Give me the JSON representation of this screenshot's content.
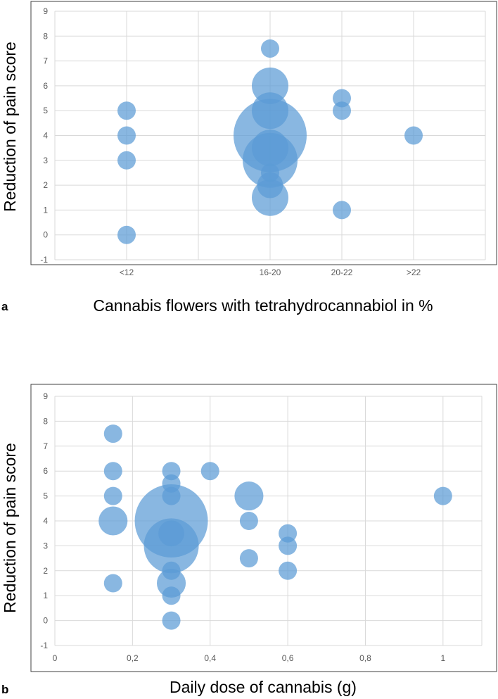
{
  "colors": {
    "bubble": "#5b9bd5",
    "grid": "#d9d9d9",
    "frame": "#404040"
  },
  "chart_data": [
    {
      "panel_label": "a",
      "type": "scatter",
      "subtype": "bubble",
      "xlabel": "Cannabis flowers with tetrahydrocannabiol in %",
      "ylabel": "Reduction of pain score",
      "x_categories": [
        "<12",
        "16-20",
        "20-22",
        ">22"
      ],
      "x_positions": [
        1,
        3,
        4,
        5
      ],
      "xlim": [
        0,
        6
      ],
      "ylim": [
        -1,
        9
      ],
      "y_ticks": [
        "-1",
        "0",
        "1",
        "2",
        "3",
        "4",
        "5",
        "6",
        "7",
        "8",
        "9"
      ],
      "grid": true,
      "points": [
        {
          "x": 1,
          "y": 5,
          "size": 1
        },
        {
          "x": 1,
          "y": 4,
          "size": 1
        },
        {
          "x": 1,
          "y": 3,
          "size": 1
        },
        {
          "x": 1,
          "y": 0,
          "size": 1
        },
        {
          "x": 3,
          "y": 7.5,
          "size": 1
        },
        {
          "x": 3,
          "y": 6,
          "size": 4
        },
        {
          "x": 3,
          "y": 5,
          "size": 4
        },
        {
          "x": 3,
          "y": 4,
          "size": 16
        },
        {
          "x": 3,
          "y": 3.5,
          "size": 4
        },
        {
          "x": 3,
          "y": 3,
          "size": 9
        },
        {
          "x": 3,
          "y": 2.5,
          "size": 1
        },
        {
          "x": 3,
          "y": 2,
          "size": 2
        },
        {
          "x": 3,
          "y": 1.5,
          "size": 4
        },
        {
          "x": 4,
          "y": 5.5,
          "size": 1
        },
        {
          "x": 4,
          "y": 5,
          "size": 1
        },
        {
          "x": 4,
          "y": 1,
          "size": 1
        },
        {
          "x": 5,
          "y": 4,
          "size": 1
        }
      ]
    },
    {
      "panel_label": "b",
      "type": "scatter",
      "subtype": "bubble",
      "xlabel": "Daily dose of cannabis (g)",
      "ylabel": "Reduction of pain score",
      "x_ticks": [
        "0",
        "0,2",
        "0,4",
        "0,6",
        "0,8",
        "1"
      ],
      "xlim": [
        0,
        1.1
      ],
      "ylim": [
        -1,
        9
      ],
      "y_ticks": [
        "-1",
        "0",
        "1",
        "2",
        "3",
        "4",
        "5",
        "6",
        "7",
        "8",
        "9"
      ],
      "grid": true,
      "points": [
        {
          "x": 0.15,
          "y": 7.5,
          "size": 1
        },
        {
          "x": 0.15,
          "y": 6,
          "size": 1
        },
        {
          "x": 0.15,
          "y": 5,
          "size": 1
        },
        {
          "x": 0.15,
          "y": 4,
          "size": 2.5
        },
        {
          "x": 0.15,
          "y": 1.5,
          "size": 1
        },
        {
          "x": 0.3,
          "y": 6,
          "size": 1
        },
        {
          "x": 0.3,
          "y": 5.5,
          "size": 1
        },
        {
          "x": 0.3,
          "y": 5,
          "size": 1
        },
        {
          "x": 0.3,
          "y": 4,
          "size": 16
        },
        {
          "x": 0.3,
          "y": 3.5,
          "size": 2
        },
        {
          "x": 0.3,
          "y": 3,
          "size": 9
        },
        {
          "x": 0.3,
          "y": 2,
          "size": 1
        },
        {
          "x": 0.3,
          "y": 1.5,
          "size": 2.5
        },
        {
          "x": 0.3,
          "y": 1,
          "size": 1
        },
        {
          "x": 0.3,
          "y": 0,
          "size": 1
        },
        {
          "x": 0.4,
          "y": 6,
          "size": 1
        },
        {
          "x": 0.5,
          "y": 5,
          "size": 2.5
        },
        {
          "x": 0.5,
          "y": 4,
          "size": 1
        },
        {
          "x": 0.5,
          "y": 2.5,
          "size": 1
        },
        {
          "x": 0.6,
          "y": 3.5,
          "size": 1
        },
        {
          "x": 0.6,
          "y": 3,
          "size": 1
        },
        {
          "x": 0.6,
          "y": 2,
          "size": 1
        },
        {
          "x": 1,
          "y": 5,
          "size": 1
        }
      ]
    }
  ]
}
